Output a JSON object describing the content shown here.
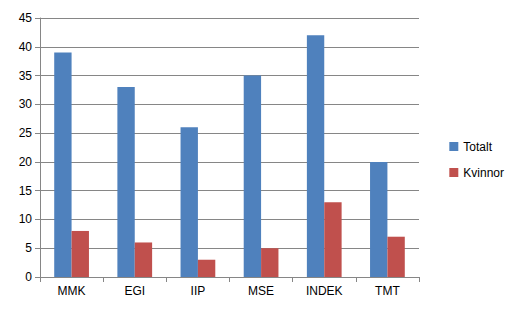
{
  "chart_data": {
    "type": "bar",
    "categories": [
      "MMK",
      "EGI",
      "IIP",
      "MSE",
      "INDEK",
      "TMT"
    ],
    "series": [
      {
        "name": "Totalt",
        "color": "#4f81bd",
        "values": [
          39,
          33,
          26,
          35,
          42,
          20
        ]
      },
      {
        "name": "Kvinnor",
        "color": "#c0504d",
        "values": [
          8,
          6,
          3,
          5,
          13,
          7
        ]
      }
    ],
    "ylim": [
      0,
      45
    ],
    "yticks": [
      0,
      5,
      10,
      15,
      20,
      25,
      30,
      35,
      40,
      45
    ],
    "grid": true,
    "legend": "right"
  }
}
